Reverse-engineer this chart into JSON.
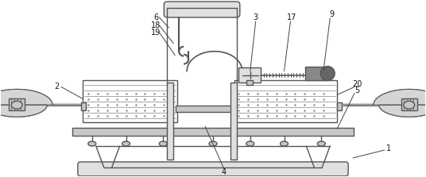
{
  "bg": "#ffffff",
  "lc": "#555555",
  "lw": 1.0,
  "gray_light": "#e0e0e0",
  "gray_med": "#c8c8c8",
  "gray_dark": "#aaaaaa",
  "white": "#ffffff",
  "fs": 7.0
}
